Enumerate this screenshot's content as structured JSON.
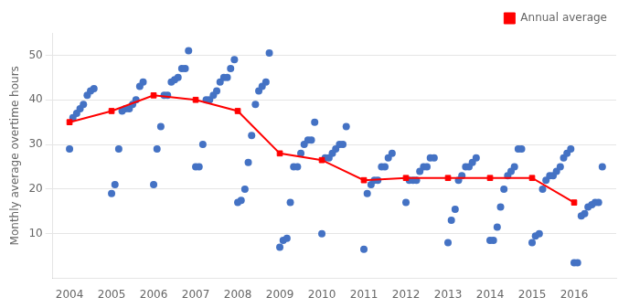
{
  "chart_data": {
    "type": "scatter",
    "y_label": "Monthly average overtime hours",
    "xlim": [
      2003.6,
      2017.0
    ],
    "xticks": [
      2004,
      2005,
      2006,
      2007,
      2008,
      2009,
      2010,
      2011,
      2012,
      2013,
      2014,
      2015,
      2016
    ],
    "ylim": [
      0,
      55
    ],
    "yticks": [
      10,
      20,
      30,
      40,
      50
    ],
    "grid": "y",
    "legend": "upper right",
    "series": [
      {
        "type": "scatter",
        "color": "#4472C4",
        "marker": "circle",
        "x": [
          2004.0,
          2004.08,
          2004.17,
          2004.25,
          2004.33,
          2004.42,
          2004.5,
          2004.58,
          2005.0,
          2005.08,
          2005.17,
          2005.25,
          2005.33,
          2005.42,
          2005.5,
          2005.58,
          2005.67,
          2005.75,
          2006.0,
          2006.08,
          2006.17,
          2006.25,
          2006.33,
          2006.42,
          2006.5,
          2006.58,
          2006.67,
          2006.75,
          2006.83,
          2007.0,
          2007.08,
          2007.17,
          2007.25,
          2007.33,
          2007.42,
          2007.5,
          2007.58,
          2007.67,
          2007.75,
          2007.83,
          2007.92,
          2008.0,
          2008.08,
          2008.17,
          2008.25,
          2008.33,
          2008.42,
          2008.5,
          2008.58,
          2008.67,
          2008.75,
          2009.0,
          2009.08,
          2009.17,
          2009.25,
          2009.33,
          2009.42,
          2009.5,
          2009.58,
          2009.67,
          2009.75,
          2009.83,
          2010.0,
          2010.08,
          2010.17,
          2010.25,
          2010.33,
          2010.42,
          2010.5,
          2010.58,
          2011.0,
          2011.08,
          2011.17,
          2011.25,
          2011.33,
          2011.42,
          2011.5,
          2011.58,
          2011.67,
          2012.0,
          2012.08,
          2012.17,
          2012.25,
          2012.33,
          2012.42,
          2012.5,
          2012.58,
          2012.67,
          2013.0,
          2013.08,
          2013.17,
          2013.25,
          2013.33,
          2013.42,
          2013.5,
          2013.58,
          2013.67,
          2014.0,
          2014.08,
          2014.17,
          2014.25,
          2014.33,
          2014.42,
          2014.5,
          2014.58,
          2014.67,
          2014.75,
          2015.0,
          2015.08,
          2015.17,
          2015.25,
          2015.33,
          2015.42,
          2015.5,
          2015.58,
          2015.67,
          2015.75,
          2015.83,
          2015.92,
          2016.0,
          2016.08,
          2016.17,
          2016.25,
          2016.33,
          2016.42,
          2016.5,
          2016.58,
          2016.67
        ],
        "values": [
          29,
          36,
          37,
          38,
          39,
          41,
          42,
          42.5,
          19,
          21,
          29,
          37.5,
          38,
          38,
          39,
          40,
          43,
          44,
          21,
          29,
          34,
          41,
          41,
          44,
          44.5,
          45,
          47,
          47,
          51,
          25,
          25,
          30,
          40,
          40,
          41,
          42,
          44,
          45,
          45,
          47,
          49,
          17,
          17.5,
          20,
          26,
          32,
          39,
          42,
          43,
          44,
          50.5,
          7,
          8.5,
          9,
          17,
          25,
          25,
          28,
          30,
          31,
          31,
          35,
          10,
          27,
          27,
          28,
          29,
          30,
          30,
          34,
          6.5,
          19,
          21,
          22,
          22,
          25,
          25,
          27,
          28,
          17,
          22,
          22,
          22,
          24,
          25,
          25,
          27,
          27,
          8,
          13,
          15.5,
          22,
          23,
          25,
          25,
          26,
          27,
          8.5,
          8.5,
          11.5,
          16,
          20,
          23,
          24,
          25,
          29,
          29,
          8,
          9.5,
          10,
          20,
          22,
          23,
          23,
          24,
          25,
          27,
          28,
          29,
          3.5,
          3.5,
          14,
          14.5,
          16,
          16.5,
          17,
          17,
          25
        ]
      },
      {
        "name": "Annual average",
        "type": "line",
        "color": "#FF0000",
        "marker": "square",
        "line_style": "solid",
        "x": [
          2004,
          2005,
          2006,
          2007,
          2008,
          2009,
          2010,
          2011,
          2012,
          2013,
          2014,
          2015,
          2016
        ],
        "values": [
          35.0,
          37.5,
          41.0,
          40.0,
          37.5,
          28.0,
          26.5,
          22.0,
          22.5,
          22.5,
          22.5,
          22.5,
          17.0
        ]
      }
    ]
  }
}
